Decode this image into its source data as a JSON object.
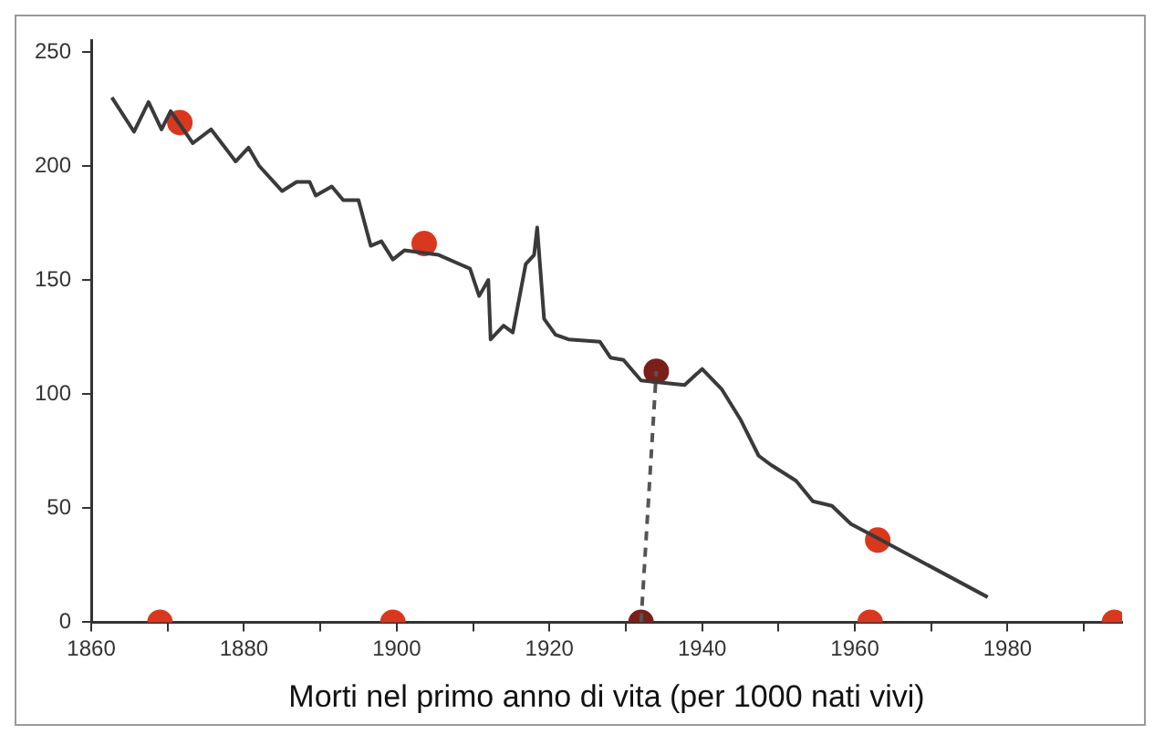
{
  "chart_data": {
    "type": "line",
    "xlabel": "Morti nel primo anno di vita (per 1000 nati vivi)",
    "xlim": [
      1860,
      1995
    ],
    "xticks": [
      {
        "value": 1860,
        "label": "1860"
      },
      {
        "value": 1870,
        "label": null
      },
      {
        "value": 1880,
        "label": "1880"
      },
      {
        "value": 1890,
        "label": null
      },
      {
        "value": 1900,
        "label": "1900"
      },
      {
        "value": 1910,
        "label": null
      },
      {
        "value": 1920,
        "label": "1920"
      },
      {
        "value": 1930,
        "label": null
      },
      {
        "value": 1940,
        "label": "1940"
      },
      {
        "value": 1950,
        "label": null
      },
      {
        "value": 1960,
        "label": "1960"
      },
      {
        "value": 1970,
        "label": null
      },
      {
        "value": 1980,
        "label": "1980"
      },
      {
        "value": 1990,
        "label": null
      }
    ],
    "ylim": [
      0,
      255
    ],
    "yticks": [
      0,
      50,
      100,
      150,
      200,
      250
    ],
    "grid": false,
    "legend": false,
    "series": [
      {
        "type": "line",
        "color": "#3a3a3a",
        "marker": "none",
        "line_style": "solid",
        "x": [
          1862.7,
          1865.6,
          1867.5,
          1869.2,
          1870.4,
          1873.3,
          1875.7,
          1878.9,
          1880.6,
          1882,
          1885,
          1886.9,
          1888.6,
          1889.4,
          1891.5,
          1893,
          1895,
          1896.6,
          1898,
          1899.5,
          1901,
          1905.5,
          1909.6,
          1910.8,
          1912,
          1912.3,
          1914,
          1915.2,
          1916.9,
          1918,
          1918.4,
          1919.3,
          1920.8,
          1922.5,
          1926.6,
          1928,
          1929.7,
          1932,
          1937.7,
          1940,
          1942.6,
          1945,
          1947.4,
          1949,
          1952.3,
          1954.5,
          1957,
          1959.5,
          1962.9,
          1977.4
        ],
        "values": [
          230,
          215,
          228,
          216,
          224,
          210,
          216,
          202,
          208,
          200,
          189,
          193,
          193,
          187,
          191,
          185,
          185,
          165,
          167,
          159,
          163,
          161,
          155,
          143,
          150,
          124,
          130,
          127,
          157,
          161,
          173,
          133,
          126,
          124,
          123,
          116,
          115,
          106,
          104,
          111,
          102,
          89,
          73,
          69,
          62,
          53,
          51,
          43,
          37,
          11
        ]
      },
      {
        "type": "line",
        "color": "#555555",
        "marker": "none",
        "line_style": "dashed",
        "x": [
          1932,
          1934
        ],
        "values": [
          0,
          110
        ]
      },
      {
        "type": "scatter",
        "marker": "circle",
        "color": "#d9381e",
        "colors": [
          "#d9381e",
          "#d9381e",
          "#7a1f1a",
          "#d9381e",
          "#d9381e",
          "#d9381e",
          "#7a1f1a",
          "#d9381e",
          "#d9381e"
        ],
        "x": [
          1871.6,
          1903.6,
          1934,
          1963,
          1869,
          1899.5,
          1932,
          1962,
          1994
        ],
        "values": [
          219,
          166,
          110,
          36,
          0,
          0,
          0,
          0,
          0
        ]
      }
    ]
  }
}
